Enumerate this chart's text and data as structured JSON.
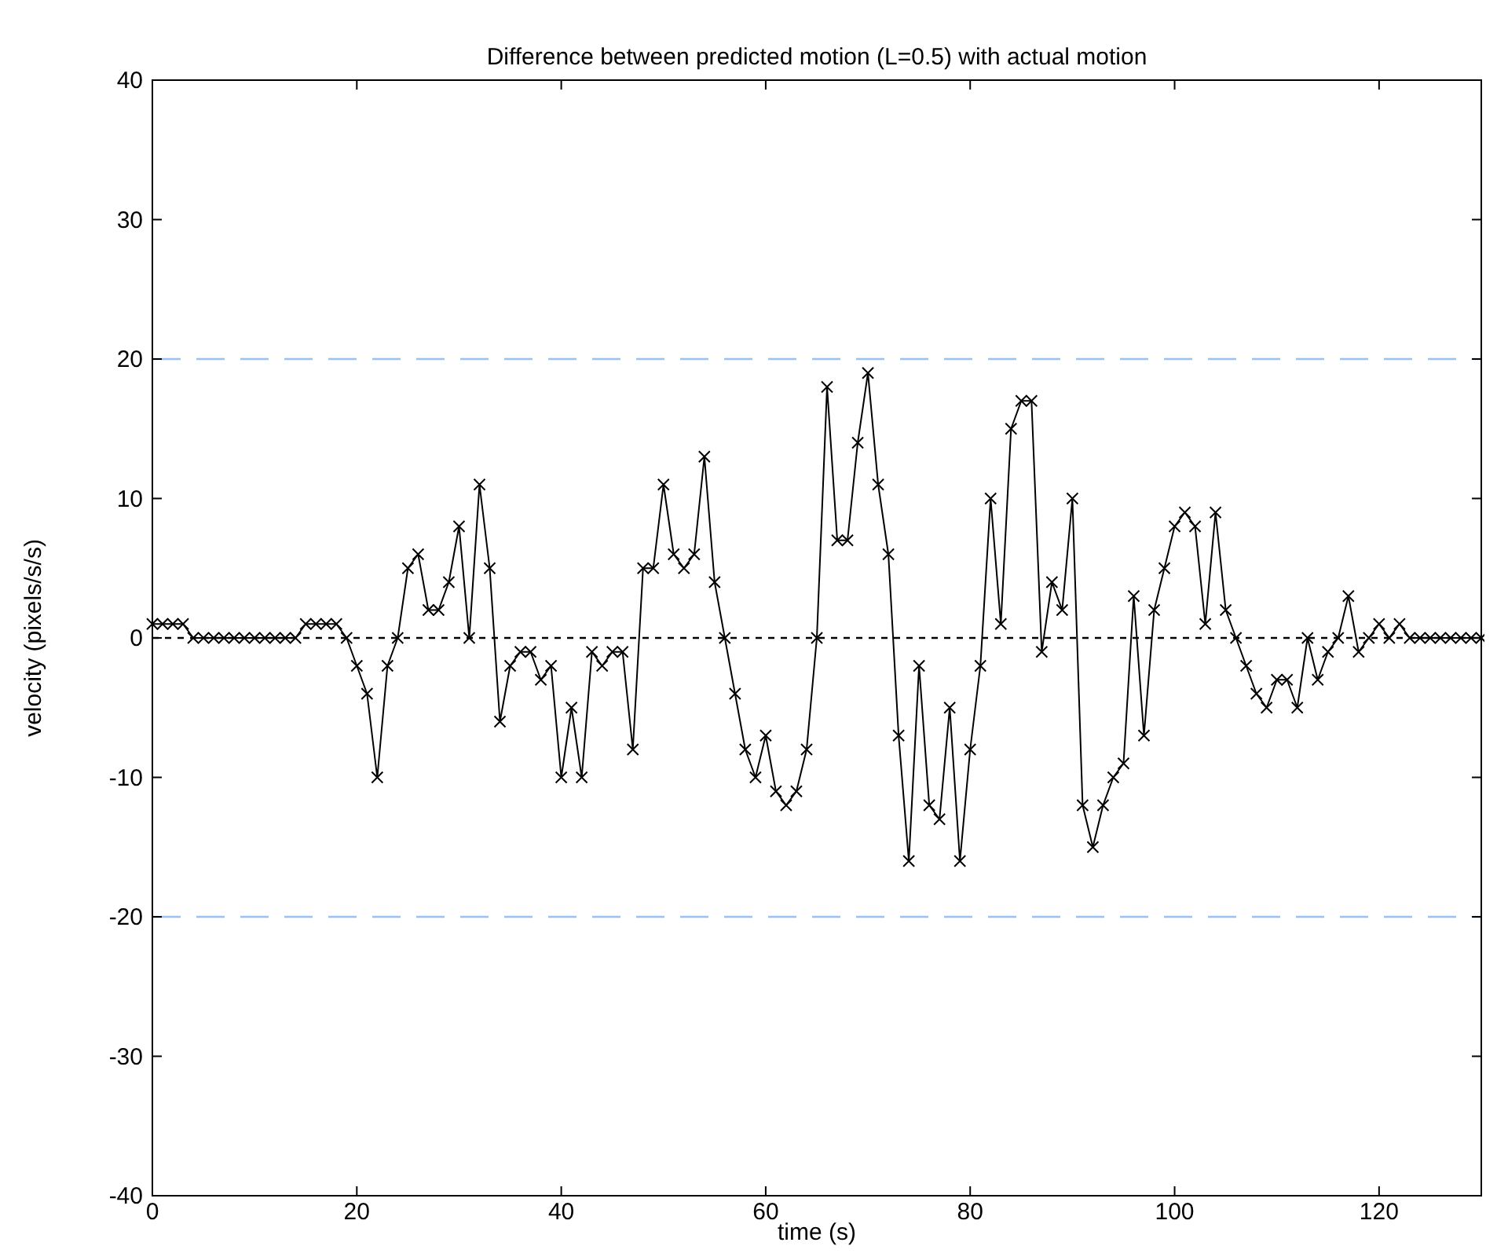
{
  "chart_data": {
    "type": "line",
    "title": "Difference between predicted motion (L=0.5) with actual motion",
    "xlabel": "time (s)",
    "ylabel": "velocity (pixels/s/s)",
    "x": [
      0,
      1,
      2,
      3,
      4,
      5,
      6,
      7,
      8,
      9,
      10,
      11,
      12,
      13,
      14,
      15,
      16,
      17,
      18,
      19,
      20,
      21,
      22,
      23,
      24,
      25,
      26,
      27,
      28,
      29,
      30,
      31,
      32,
      33,
      34,
      35,
      36,
      37,
      38,
      39,
      40,
      41,
      42,
      43,
      44,
      45,
      46,
      47,
      48,
      49,
      50,
      51,
      52,
      53,
      54,
      55,
      56,
      57,
      58,
      59,
      60,
      61,
      62,
      63,
      64,
      65,
      66,
      67,
      68,
      69,
      70,
      71,
      72,
      73,
      74,
      75,
      76,
      77,
      78,
      79,
      80,
      81,
      82,
      83,
      84,
      85,
      86,
      87,
      88,
      89,
      90,
      91,
      92,
      93,
      94,
      95,
      96,
      97,
      98,
      99,
      100,
      101,
      102,
      103,
      104,
      105,
      106,
      107,
      108,
      109,
      110,
      111,
      112,
      113,
      114,
      115,
      116,
      117,
      118,
      119,
      120,
      121,
      122,
      123,
      124,
      125,
      126,
      127,
      128,
      129,
      130
    ],
    "series": [
      {
        "color": "#000000",
        "values": [
          1,
          1,
          1,
          1,
          0,
          0,
          0,
          0,
          0,
          0,
          0,
          0,
          0,
          0,
          0,
          1,
          1,
          1,
          1,
          0,
          -2,
          -4,
          -10,
          -2,
          0,
          5,
          6,
          2,
          2,
          4,
          8,
          0,
          11,
          5,
          -6,
          -2,
          -1,
          -1,
          -3,
          -2,
          -10,
          -5,
          -10,
          -1,
          -2,
          -1,
          -1,
          -8,
          5,
          5,
          11,
          6,
          5,
          6,
          13,
          4,
          0,
          -4,
          -8,
          -10,
          -7,
          -11,
          -12,
          -11,
          -8,
          0,
          18,
          7,
          7,
          14,
          19,
          11,
          6,
          -7,
          -16,
          -2,
          -12,
          -13,
          -5,
          -16,
          -8,
          -2,
          10,
          1,
          15,
          17,
          17,
          -1,
          4,
          2,
          10,
          -12,
          -15,
          -12,
          -10,
          -9,
          3,
          -7,
          2,
          5,
          8,
          9,
          8,
          1,
          9,
          2,
          0,
          -2,
          -4,
          -5,
          -3,
          -3,
          -5,
          0,
          -3,
          -1,
          0,
          3,
          -1,
          0,
          1,
          0,
          1,
          0,
          0,
          0,
          0,
          0,
          0,
          0,
          0
        ]
      }
    ],
    "marker": "cross",
    "line_style": "solid",
    "xlim": [
      0,
      130
    ],
    "xticks": [
      0,
      20,
      40,
      60,
      80,
      100,
      120
    ],
    "ylim": [
      -40,
      40
    ],
    "yticks": [
      -40,
      -30,
      -20,
      -10,
      0,
      10,
      20,
      30,
      40
    ],
    "ref_lines": [
      {
        "axis": "y",
        "value": 20,
        "color": "#99c2f0",
        "line_style": "dashed"
      },
      {
        "axis": "y",
        "value": -20,
        "color": "#99c2f0",
        "line_style": "dashed"
      },
      {
        "axis": "y",
        "value": 0,
        "color": "#000000",
        "line_style": "dotted"
      }
    ],
    "grid": false
  }
}
